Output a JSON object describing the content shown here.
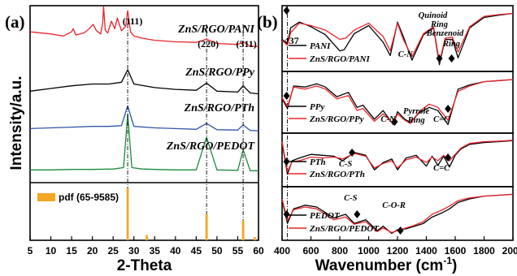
{
  "chart_data": [
    {
      "panel": "(a)",
      "type": "line",
      "xlabel": "2-Theta",
      "ylabel": "Intensity/a.u.",
      "xlim": [
        5,
        60
      ],
      "xticks": [
        5,
        10,
        15,
        20,
        25,
        30,
        35,
        40,
        45,
        50,
        55,
        60
      ],
      "peak_labels": [
        {
          "text": "(111)",
          "x": 28.5
        },
        {
          "text": "(220)",
          "x": 47.5
        },
        {
          "text": "(311)",
          "x": 56.3
        }
      ],
      "series": [
        {
          "name": "ZnS/RGO/PANI",
          "color": "#e8242a",
          "x": [
            5,
            10,
            13,
            15,
            15.4,
            16,
            18,
            19,
            20.2,
            21,
            22,
            22.5,
            22.7,
            23.1,
            23.7,
            24.6,
            25.4,
            26,
            27,
            28,
            28.5,
            29.2,
            30,
            32,
            35,
            40,
            45,
            47.5,
            50,
            55,
            56.3,
            58,
            60
          ],
          "y": [
            0.52,
            0.48,
            0.44,
            0.52,
            0.58,
            0.46,
            0.5,
            0.56,
            0.66,
            0.54,
            0.48,
            0.7,
            1.0,
            0.55,
            0.5,
            0.72,
            0.58,
            0.78,
            0.54,
            0.62,
            0.92,
            0.52,
            0.44,
            0.4,
            0.36,
            0.33,
            0.32,
            0.38,
            0.3,
            0.28,
            0.33,
            0.25,
            0.24
          ]
        },
        {
          "name": "ZnS/RGO/PPy",
          "color": "#000000",
          "x": [
            5,
            10,
            15,
            20,
            24,
            27,
            28.5,
            30,
            35,
            40,
            45,
            47.5,
            50,
            55,
            56.3,
            58,
            60
          ],
          "y": [
            0.14,
            0.2,
            0.26,
            0.3,
            0.3,
            0.34,
            0.62,
            0.3,
            0.22,
            0.18,
            0.16,
            0.32,
            0.14,
            0.12,
            0.26,
            0.1,
            0.08
          ]
        },
        {
          "name": "ZnS/RGO/PTh",
          "color": "#2e56a8",
          "x": [
            5,
            10,
            15,
            20,
            24,
            27,
            28.5,
            30,
            35,
            40,
            45,
            47.5,
            50,
            55,
            56.3,
            58,
            60
          ],
          "y": [
            0.08,
            0.1,
            0.12,
            0.14,
            0.14,
            0.16,
            0.7,
            0.14,
            0.1,
            0.08,
            0.06,
            0.22,
            0.05,
            0.04,
            0.18,
            0.03,
            0.02
          ]
        },
        {
          "name": "ZnS/RGO/PEDOT",
          "color": "#1c8a3a",
          "x": [
            5,
            10,
            15,
            20,
            25,
            27.5,
            28.5,
            29.5,
            32,
            35,
            40,
            45,
            47.5,
            50,
            55,
            56.3,
            58,
            60
          ],
          "y": [
            0.05,
            0.05,
            0.06,
            0.06,
            0.07,
            0.1,
            1.3,
            0.1,
            0.07,
            0.06,
            0.05,
            0.05,
            0.78,
            0.05,
            0.04,
            0.5,
            0.03,
            0.03
          ]
        }
      ],
      "reference": {
        "name": "pdf (65-9585)",
        "color": "#f5a623",
        "x": [
          28.5,
          33.1,
          47.5,
          56.3,
          59.1
        ],
        "y": [
          1.0,
          0.1,
          0.5,
          0.38,
          0.06
        ]
      }
    },
    {
      "panel": "(b)",
      "type": "line",
      "xlabel": "Wavenumber (cm",
      "xlabel_sup": "-1",
      "xlabel_end": ")",
      "xlim": [
        400,
        2000
      ],
      "xticks": [
        400,
        600,
        800,
        1000,
        1200,
        1400,
        1600,
        1800,
        2000
      ],
      "marker_line_x": 437,
      "marker_line_label": "437",
      "subpanels": [
        {
          "series": [
            {
              "name": "PANI",
              "color": "#000000",
              "x": [
                400,
                437,
                460,
                520,
                600,
                700,
                800,
                830,
                900,
                1000,
                1100,
                1150,
                1200,
                1240,
                1300,
                1380,
                1450,
                1490,
                1530,
                1580,
                1620,
                1700,
                1800,
                1900,
                2000
              ],
              "y": [
                0.5,
                0.42,
                0.7,
                0.8,
                0.72,
                0.58,
                0.3,
                0.32,
                0.6,
                0.74,
                0.45,
                0.22,
                0.8,
                0.55,
                0.14,
                0.58,
                0.7,
                0.06,
                0.5,
                0.5,
                0.18,
                0.7,
                0.88,
                0.92,
                0.95
              ]
            },
            {
              "name": "ZnS/RGO/PANI",
              "color": "#e8242a",
              "x": [
                400,
                437,
                460,
                520,
                600,
                700,
                800,
                840,
                900,
                1000,
                1100,
                1150,
                1200,
                1240,
                1300,
                1380,
                1450,
                1490,
                1530,
                1580,
                1620,
                1700,
                1800,
                1900,
                2000
              ],
              "y": [
                0.48,
                0.4,
                0.62,
                0.78,
                0.74,
                0.66,
                0.5,
                0.52,
                0.66,
                0.78,
                0.55,
                0.3,
                0.78,
                0.5,
                0.2,
                0.6,
                0.72,
                0.1,
                0.52,
                0.54,
                0.28,
                0.72,
                0.9,
                0.93,
                0.95
              ]
            }
          ],
          "annotations": [
            {
              "text": "C-N",
              "x": 1300,
              "marker": true
            },
            {
              "text": "Quinoid",
              "x": 1490,
              "marker": true
            },
            {
              "text": "Ring",
              "x": 1490
            },
            {
              "text": "Benzenoid",
              "x": 1575,
              "marker": true
            },
            {
              "text": "Ring",
              "x": 1575
            }
          ]
        },
        {
          "series": [
            {
              "name": "PPy",
              "color": "#000000",
              "x": [
                400,
                437,
                480,
                560,
                640,
                700,
                780,
                860,
                920,
                960,
                1040,
                1100,
                1170,
                1200,
                1250,
                1290,
                1350,
                1420,
                1480,
                1550,
                1620,
                1700,
                1800,
                1900,
                2000
              ],
              "y": [
                0.58,
                0.4,
                0.82,
                0.8,
                0.86,
                0.8,
                0.62,
                0.7,
                0.42,
                0.46,
                0.2,
                0.36,
                0.1,
                0.34,
                0.2,
                0.14,
                0.32,
                0.42,
                0.36,
                0.1,
                0.76,
                0.84,
                0.9,
                0.92,
                0.94
              ]
            },
            {
              "name": "ZnS/RGO/PPy",
              "color": "#e8242a",
              "x": [
                400,
                437,
                480,
                560,
                640,
                700,
                780,
                860,
                920,
                960,
                1040,
                1100,
                1170,
                1200,
                1250,
                1290,
                1350,
                1420,
                1480,
                1550,
                1620,
                1700,
                1800,
                1900,
                2000
              ],
              "y": [
                0.6,
                0.44,
                0.8,
                0.76,
                0.82,
                0.76,
                0.58,
                0.64,
                0.36,
                0.4,
                0.16,
                0.3,
                0.12,
                0.3,
                0.18,
                0.12,
                0.34,
                0.48,
                0.42,
                0.18,
                0.72,
                0.82,
                0.9,
                0.92,
                0.94
              ]
            }
          ],
          "annotations": [
            {
              "text": "C-N",
              "x": 1180,
              "marker": true
            },
            {
              "text": "Pyrrole",
              "x": 1330
            },
            {
              "text": "Ring",
              "x": 1330
            },
            {
              "text": "C=C",
              "x": 1550,
              "marker": true
            }
          ]
        },
        {
          "series": [
            {
              "name": "PTh",
              "color": "#000000",
              "x": [
                400,
                437,
                470,
                520,
                600,
                680,
                760,
                820,
                900,
                980,
                1040,
                1100,
                1160,
                1200,
                1260,
                1330,
                1400,
                1440,
                1480,
                1520,
                1560,
                1600,
                1640,
                1700,
                1800,
                1900,
                2000
              ],
              "y": [
                0.9,
                0.2,
                0.5,
                0.56,
                0.64,
                0.62,
                0.6,
                0.5,
                0.68,
                0.62,
                0.3,
                0.46,
                0.54,
                0.3,
                0.56,
                0.62,
                0.38,
                0.6,
                0.4,
                0.6,
                0.36,
                0.62,
                0.76,
                0.86,
                0.9,
                0.92,
                0.94
              ]
            },
            {
              "name": "ZnS/RGO/PTh",
              "color": "#e8242a",
              "x": [
                400,
                437,
                470,
                520,
                600,
                680,
                760,
                820,
                900,
                980,
                1040,
                1100,
                1160,
                1200,
                1260,
                1330,
                1400,
                1440,
                1480,
                1520,
                1560,
                1600,
                1640,
                1700,
                1800,
                1900,
                2000
              ],
              "y": [
                0.92,
                0.26,
                0.48,
                0.5,
                0.58,
                0.56,
                0.58,
                0.54,
                0.66,
                0.6,
                0.34,
                0.44,
                0.5,
                0.34,
                0.52,
                0.58,
                0.46,
                0.58,
                0.5,
                0.62,
                0.5,
                0.64,
                0.78,
                0.88,
                0.92,
                0.93,
                0.95
              ]
            }
          ],
          "annotations": [
            {
              "text": "C-S",
              "x": 885,
              "marker": true
            },
            {
              "text": "C=C",
              "x": 1550,
              "marker": true
            }
          ]
        },
        {
          "series": [
            {
              "name": "PEDOT",
              "color": "#000000",
              "x": [
                400,
                437,
                480,
                560,
                640,
                700,
                760,
                840,
                900,
                980,
                1060,
                1100,
                1160,
                1200,
                1260,
                1320,
                1380,
                1440,
                1500,
                1560,
                1620,
                1700,
                1800,
                1900,
                2000
              ],
              "y": [
                0.82,
                0.3,
                0.62,
                0.7,
                0.66,
                0.54,
                0.42,
                0.5,
                0.3,
                0.38,
                0.14,
                0.24,
                0.08,
                0.16,
                0.18,
                0.24,
                0.3,
                0.44,
                0.52,
                0.62,
                0.76,
                0.84,
                0.9,
                0.92,
                0.94
              ]
            },
            {
              "name": "ZnS/RGO/PEDOT",
              "color": "#e8242a",
              "x": [
                400,
                437,
                480,
                560,
                640,
                700,
                760,
                840,
                900,
                980,
                1060,
                1100,
                1160,
                1200,
                1260,
                1320,
                1380,
                1440,
                1500,
                1560,
                1620,
                1700,
                1800,
                1900,
                2000
              ],
              "y": [
                0.84,
                0.36,
                0.6,
                0.66,
                0.62,
                0.5,
                0.38,
                0.44,
                0.28,
                0.34,
                0.12,
                0.2,
                0.1,
                0.14,
                0.2,
                0.26,
                0.34,
                0.5,
                0.58,
                0.68,
                0.8,
                0.86,
                0.9,
                0.92,
                0.94
              ]
            }
          ],
          "annotations": [
            {
              "text": "C-S",
              "x": 920,
              "marker": true
            },
            {
              "text": "C-O-R",
              "x": 1220,
              "marker": true
            }
          ]
        }
      ]
    }
  ]
}
